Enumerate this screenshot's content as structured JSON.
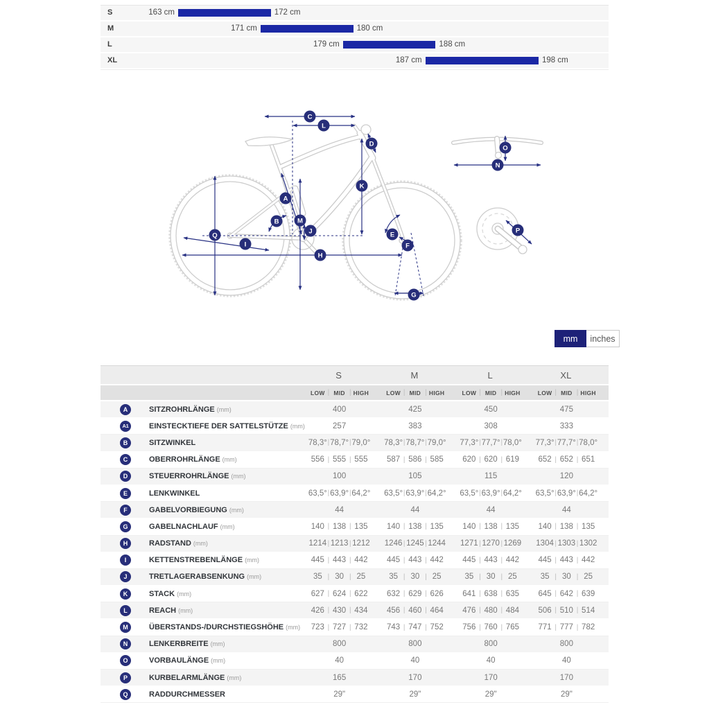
{
  "colors": {
    "bar_blue": "#1b28a5",
    "badge_navy": "#272e79",
    "arrow_navy": "#283183",
    "selected_toggle": "#1d2178",
    "row_gray": "#f4f4f4",
    "header_gray": "#ededed",
    "subheader_gray": "#e1e1e1"
  },
  "size_guide": {
    "unit": "cm",
    "rows": [
      {
        "label": "S",
        "min": 163,
        "max": 172,
        "min_label": "163 cm",
        "max_label": "172 cm"
      },
      {
        "label": "M",
        "min": 171,
        "max": 180,
        "min_label": "171 cm",
        "max_label": "180 cm"
      },
      {
        "label": "L",
        "min": 179,
        "max": 188,
        "min_label": "179 cm",
        "max_label": "188 cm"
      },
      {
        "label": "XL",
        "min": 187,
        "max": 198,
        "min_label": "187 cm",
        "max_label": "198 cm"
      }
    ]
  },
  "diagram": {
    "badges": {
      "A": "A",
      "B": "B",
      "C": "C",
      "D": "D",
      "E": "E",
      "F": "F",
      "G": "G",
      "H": "H",
      "I": "I",
      "J": "J",
      "K": "K",
      "L": "L",
      "M": "M",
      "N": "N",
      "O": "O",
      "P": "P",
      "Q": "Q"
    }
  },
  "unit_toggle": {
    "options": [
      {
        "label": "mm",
        "selected": true
      },
      {
        "label": "inches",
        "selected": false
      }
    ]
  },
  "geometry_table": {
    "size_headers": [
      "S",
      "M",
      "L",
      "XL"
    ],
    "position_headers": [
      "LOW",
      "MID",
      "HIGH"
    ],
    "rows": [
      {
        "id": "A",
        "label": "SITZROHRLÄNGE",
        "unit": "(mm)",
        "type": "single",
        "values": [
          "400",
          "425",
          "450",
          "475"
        ]
      },
      {
        "id": "A1",
        "label": "EINSTECKTIEFE DER SATTELSTÜTZE",
        "unit": "(mm)",
        "type": "single",
        "values": [
          "257",
          "383",
          "308",
          "333"
        ]
      },
      {
        "id": "B",
        "label": "SITZWINKEL",
        "unit": "",
        "type": "triple",
        "values": [
          [
            "78,3°",
            "78,7°",
            "79,0°"
          ],
          [
            "78,3°",
            "78,7°",
            "79,0°"
          ],
          [
            "77,3°",
            "77,7°",
            "78,0°"
          ],
          [
            "77,3°",
            "77,7°",
            "78,0°"
          ]
        ]
      },
      {
        "id": "C",
        "label": "OBERROHRLÄNGE",
        "unit": "(mm)",
        "type": "triple",
        "values": [
          [
            "556",
            "555",
            "555"
          ],
          [
            "587",
            "586",
            "585"
          ],
          [
            "620",
            "620",
            "619"
          ],
          [
            "652",
            "652",
            "651"
          ]
        ]
      },
      {
        "id": "D",
        "label": "STEUERROHRLÄNGE",
        "unit": "(mm)",
        "type": "single",
        "values": [
          "100",
          "105",
          "115",
          "120"
        ]
      },
      {
        "id": "E",
        "label": "LENKWINKEL",
        "unit": "",
        "type": "triple",
        "values": [
          [
            "63,5°",
            "63,9°",
            "64,2°"
          ],
          [
            "63,5°",
            "63,9°",
            "64,2°"
          ],
          [
            "63,5°",
            "63,9°",
            "64,2°"
          ],
          [
            "63,5°",
            "63,9°",
            "64,2°"
          ]
        ]
      },
      {
        "id": "F",
        "label": "GABELVORBIEGUNG",
        "unit": "(mm)",
        "type": "single",
        "values": [
          "44",
          "44",
          "44",
          "44"
        ]
      },
      {
        "id": "G",
        "label": "GABELNACHLAUF",
        "unit": "(mm)",
        "type": "triple",
        "values": [
          [
            "140",
            "138",
            "135"
          ],
          [
            "140",
            "138",
            "135"
          ],
          [
            "140",
            "138",
            "135"
          ],
          [
            "140",
            "138",
            "135"
          ]
        ]
      },
      {
        "id": "H",
        "label": "RADSTAND",
        "unit": "(mm)",
        "type": "triple",
        "values": [
          [
            "1214",
            "1213",
            "1212"
          ],
          [
            "1246",
            "1245",
            "1244"
          ],
          [
            "1271",
            "1270",
            "1269"
          ],
          [
            "1304",
            "1303",
            "1302"
          ]
        ]
      },
      {
        "id": "I",
        "label": "KETTENSTREBENLÄNGE",
        "unit": "(mm)",
        "type": "triple",
        "values": [
          [
            "445",
            "443",
            "442"
          ],
          [
            "445",
            "443",
            "442"
          ],
          [
            "445",
            "443",
            "442"
          ],
          [
            "445",
            "443",
            "442"
          ]
        ]
      },
      {
        "id": "J",
        "label": "TRETLAGERABSENKUNG",
        "unit": "(mm)",
        "type": "triple",
        "values": [
          [
            "35",
            "30",
            "25"
          ],
          [
            "35",
            "30",
            "25"
          ],
          [
            "35",
            "30",
            "25"
          ],
          [
            "35",
            "30",
            "25"
          ]
        ]
      },
      {
        "id": "K",
        "label": "STACK",
        "unit": "(mm)",
        "type": "triple",
        "values": [
          [
            "627",
            "624",
            "622"
          ],
          [
            "632",
            "629",
            "626"
          ],
          [
            "641",
            "638",
            "635"
          ],
          [
            "645",
            "642",
            "639"
          ]
        ]
      },
      {
        "id": "L",
        "label": "REACH",
        "unit": "(mm)",
        "type": "triple",
        "values": [
          [
            "426",
            "430",
            "434"
          ],
          [
            "456",
            "460",
            "464"
          ],
          [
            "476",
            "480",
            "484"
          ],
          [
            "506",
            "510",
            "514"
          ]
        ]
      },
      {
        "id": "M",
        "label": "ÜBERSTANDS-/DURCHSTIEGSHÖHE",
        "unit": "(mm)",
        "type": "triple",
        "values": [
          [
            "723",
            "727",
            "732"
          ],
          [
            "743",
            "747",
            "752"
          ],
          [
            "756",
            "760",
            "765"
          ],
          [
            "771",
            "777",
            "782"
          ]
        ]
      },
      {
        "id": "N",
        "label": "LENKERBREITE",
        "unit": "(mm)",
        "type": "single",
        "values": [
          "800",
          "800",
          "800",
          "800"
        ]
      },
      {
        "id": "O",
        "label": "VORBAULÄNGE",
        "unit": "(mm)",
        "type": "single",
        "values": [
          "40",
          "40",
          "40",
          "40"
        ]
      },
      {
        "id": "P",
        "label": "KURBELARMLÄNGE",
        "unit": "(mm)",
        "type": "single",
        "values": [
          "165",
          "170",
          "170",
          "170"
        ]
      },
      {
        "id": "Q",
        "label": "RADDURCHMESSER",
        "unit": "",
        "type": "single",
        "values": [
          "29\"",
          "29\"",
          "29\"",
          "29\""
        ]
      }
    ]
  }
}
